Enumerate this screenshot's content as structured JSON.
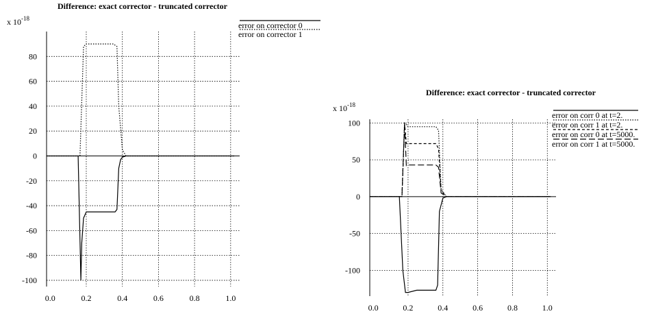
{
  "chart_data": [
    {
      "type": "line",
      "title": "Difference: exact corrector - truncated corrector",
      "scale_label": "x 10",
      "scale_exponent": "-18",
      "xlim": [
        -0.02,
        1.05
      ],
      "ylim": [
        -105,
        100
      ],
      "x_ticks": [
        "0.0",
        "0.2",
        "0.4",
        "0.6",
        "0.8",
        "1.0"
      ],
      "x_tick_values": [
        0.0,
        0.2,
        0.4,
        0.6,
        0.8,
        1.0
      ],
      "y_ticks": [
        "80",
        "60",
        "40",
        "20",
        "0",
        "-20",
        "-40",
        "-60",
        "-80",
        "-100"
      ],
      "y_tick_values": [
        80,
        60,
        40,
        20,
        0,
        -20,
        -40,
        -60,
        -80,
        -100
      ],
      "grid": true,
      "legend_position": "top-right",
      "series": [
        {
          "name": "error on corrector 0",
          "style": "solid",
          "x": [
            -0.02,
            0.155,
            0.17,
            0.175,
            0.185,
            0.2,
            0.36,
            0.37,
            0.38,
            0.39,
            0.4,
            0.42,
            0.5,
            1.02
          ],
          "y": [
            0,
            0,
            -100,
            -70,
            -50,
            -45,
            -45,
            -43,
            -10,
            -3,
            -1,
            0,
            0,
            0
          ]
        },
        {
          "name": "error on corrector 1",
          "style": "dotted",
          "x": [
            -0.02,
            0.165,
            0.185,
            0.2,
            0.35,
            0.37,
            0.38,
            0.4,
            0.42,
            0.5,
            1.02
          ],
          "y": [
            0,
            0,
            88,
            90,
            90,
            88,
            40,
            5,
            0,
            0,
            0
          ]
        }
      ]
    },
    {
      "type": "line",
      "title": "Difference: exact corrector - truncated corrector",
      "scale_label": "x 10",
      "scale_exponent": "-18",
      "xlim": [
        -0.02,
        1.05
      ],
      "ylim": [
        -135,
        105
      ],
      "x_ticks": [
        "0.0",
        "0.2",
        "0.4",
        "0.6",
        "0.8",
        "1.0"
      ],
      "x_tick_values": [
        0.0,
        0.2,
        0.4,
        0.6,
        0.8,
        1.0
      ],
      "y_ticks": [
        "100",
        "50",
        "0",
        "-50",
        "-100"
      ],
      "y_tick_values": [
        100,
        50,
        0,
        -50,
        -100
      ],
      "grid": true,
      "legend_position": "top-right",
      "series": [
        {
          "name": "error on corr 0 at t=2.",
          "style": "solid",
          "x": [
            -0.02,
            0.15,
            0.17,
            0.185,
            0.2,
            0.25,
            0.36,
            0.37,
            0.38,
            0.4,
            0.42,
            0.5,
            1.02
          ],
          "y": [
            0,
            0,
            -100,
            -130,
            -130,
            -127,
            -127,
            -120,
            -20,
            -2,
            0,
            0,
            0
          ]
        },
        {
          "name": "error on corr 1 at t=2.",
          "style": "dotted",
          "x": [
            -0.02,
            0.165,
            0.18,
            0.19,
            0.2,
            0.36,
            0.375,
            0.39,
            0.42,
            0.5,
            1.02
          ],
          "y": [
            0,
            0,
            100,
            98,
            95,
            95,
            90,
            10,
            0,
            0,
            0
          ]
        },
        {
          "name": "error on corr 0 at t=5000.",
          "style": "short-dash",
          "x": [
            -0.02,
            0.165,
            0.18,
            0.19,
            0.2,
            0.36,
            0.375,
            0.39,
            0.42,
            0.5,
            1.02
          ],
          "y": [
            0,
            0,
            100,
            72,
            72,
            72,
            65,
            8,
            0,
            0,
            0
          ]
        },
        {
          "name": "error on corr 1 at t=5000.",
          "style": "long-dash",
          "x": [
            -0.02,
            0.165,
            0.18,
            0.19,
            0.2,
            0.36,
            0.375,
            0.39,
            0.42,
            0.5,
            1.02
          ],
          "y": [
            0,
            0,
            100,
            42,
            43,
            43,
            40,
            5,
            0,
            0,
            0
          ]
        }
      ]
    }
  ]
}
